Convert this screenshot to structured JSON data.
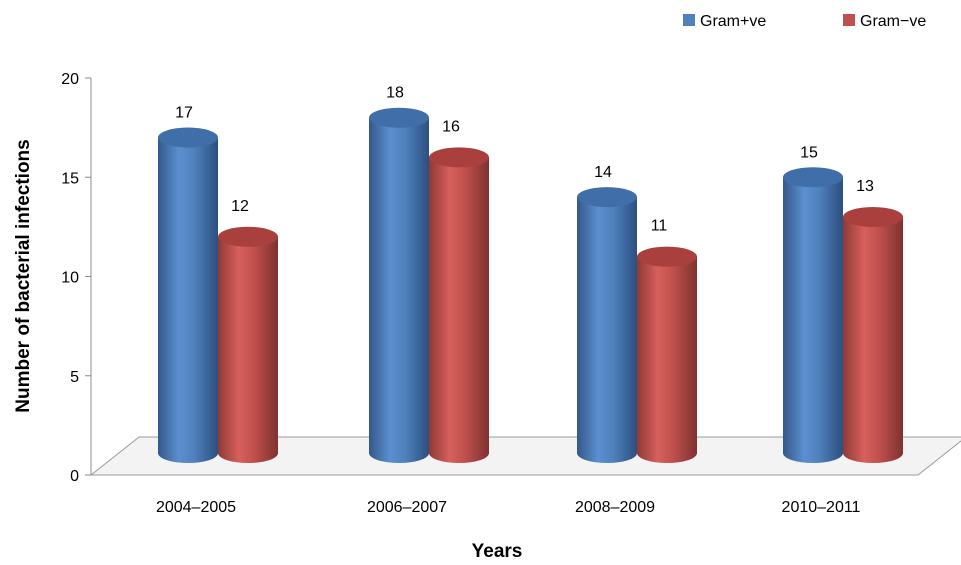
{
  "chart_data": {
    "type": "bar",
    "title": "",
    "xlabel": "Years",
    "ylabel": "Number of bacterial infections",
    "categories": [
      "2004–2005",
      "2006–2007",
      "2008–2009",
      "2010–2011"
    ],
    "series": [
      {
        "name": "Gram+ve",
        "values": [
          17,
          18,
          14,
          15
        ],
        "color": "#4F81BD"
      },
      {
        "name": "Gram−ve",
        "values": [
          12,
          16,
          11,
          13
        ],
        "color": "#C0504D"
      }
    ],
    "ylim": [
      0,
      20
    ],
    "yticks": [
      0,
      5,
      10,
      15,
      20
    ],
    "grid": false,
    "legend": "top-right",
    "style": "3d-cylinder"
  }
}
